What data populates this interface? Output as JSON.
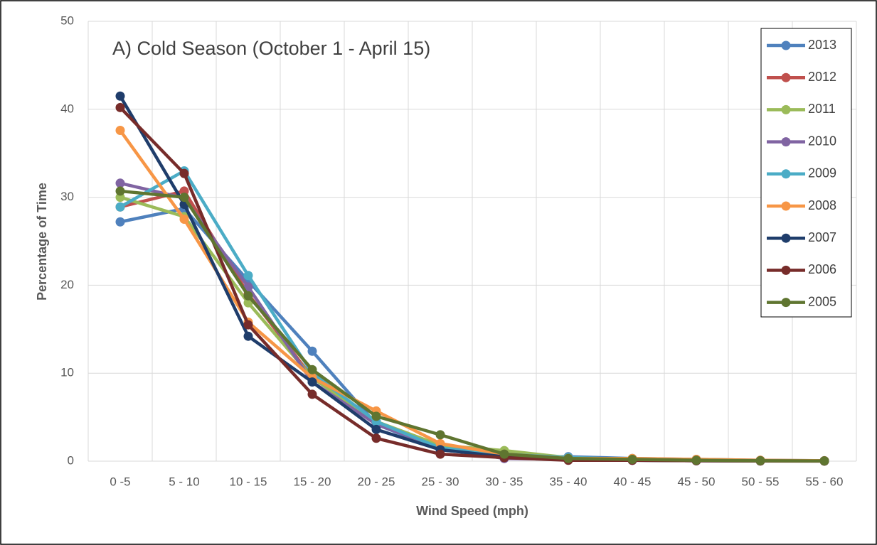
{
  "chart_data": {
    "type": "line",
    "title": "A) Cold Season (October 1 - April 15)",
    "x_label": "Wind Speed (mph)",
    "y_label": "Percentage of Time",
    "categories": [
      "0 -5",
      "5 - 10",
      "10 - 15",
      "15 - 20",
      "20 - 25",
      "25 - 30",
      "30 - 35",
      "35 - 40",
      "40 - 45",
      "45 - 50",
      "50 - 55",
      "55 - 60"
    ],
    "series": [
      {
        "name": "2013",
        "color": "#4f81bd",
        "values": [
          27.2,
          28.7,
          20.5,
          12.5,
          4.2,
          1.3,
          0.5,
          0.5,
          0.3,
          0.2,
          0.1,
          0.05
        ]
      },
      {
        "name": "2012",
        "color": "#c0504d",
        "values": [
          28.9,
          30.7,
          19.0,
          9.5,
          4.5,
          1.5,
          0.6,
          0.3,
          0.2,
          0.1,
          0.05,
          0.03
        ]
      },
      {
        "name": "2011",
        "color": "#9bbb59",
        "values": [
          30.0,
          27.8,
          18.0,
          9.5,
          4.5,
          1.8,
          1.2,
          0.4,
          0.2,
          0.1,
          0.05,
          0.03
        ]
      },
      {
        "name": "2010",
        "color": "#8064a2",
        "values": [
          31.6,
          29.9,
          19.8,
          9.0,
          4.2,
          1.5,
          0.3,
          0.2,
          0.1,
          0.05,
          0.03,
          0.02
        ]
      },
      {
        "name": "2009",
        "color": "#4bacc6",
        "values": [
          28.9,
          33.0,
          21.1,
          10.0,
          4.5,
          1.5,
          0.8,
          0.4,
          0.2,
          0.1,
          0.05,
          0.03
        ]
      },
      {
        "name": "2008",
        "color": "#f79646",
        "values": [
          37.6,
          27.5,
          15.8,
          9.5,
          5.7,
          2.0,
          0.8,
          0.3,
          0.3,
          0.2,
          0.1,
          0.05
        ]
      },
      {
        "name": "2007",
        "color": "#1f3d6b",
        "values": [
          41.5,
          29.2,
          14.2,
          9.0,
          3.6,
          1.3,
          0.5,
          0.2,
          0.1,
          0.05,
          0.03,
          0.02
        ]
      },
      {
        "name": "2006",
        "color": "#772c2a",
        "values": [
          40.2,
          32.7,
          15.5,
          7.6,
          2.6,
          0.8,
          0.4,
          0.1,
          0.1,
          0.05,
          0.02,
          0.01
        ]
      },
      {
        "name": "2005",
        "color": "#5f7530",
        "values": [
          30.7,
          30.0,
          18.8,
          10.4,
          5.1,
          3.0,
          0.8,
          0.3,
          0.2,
          0.1,
          0.05,
          0.03
        ]
      }
    ],
    "ylim": [
      0,
      50
    ],
    "yticks": [
      0,
      10,
      20,
      30,
      40,
      50
    ],
    "grid": true,
    "legend": "top-right"
  }
}
